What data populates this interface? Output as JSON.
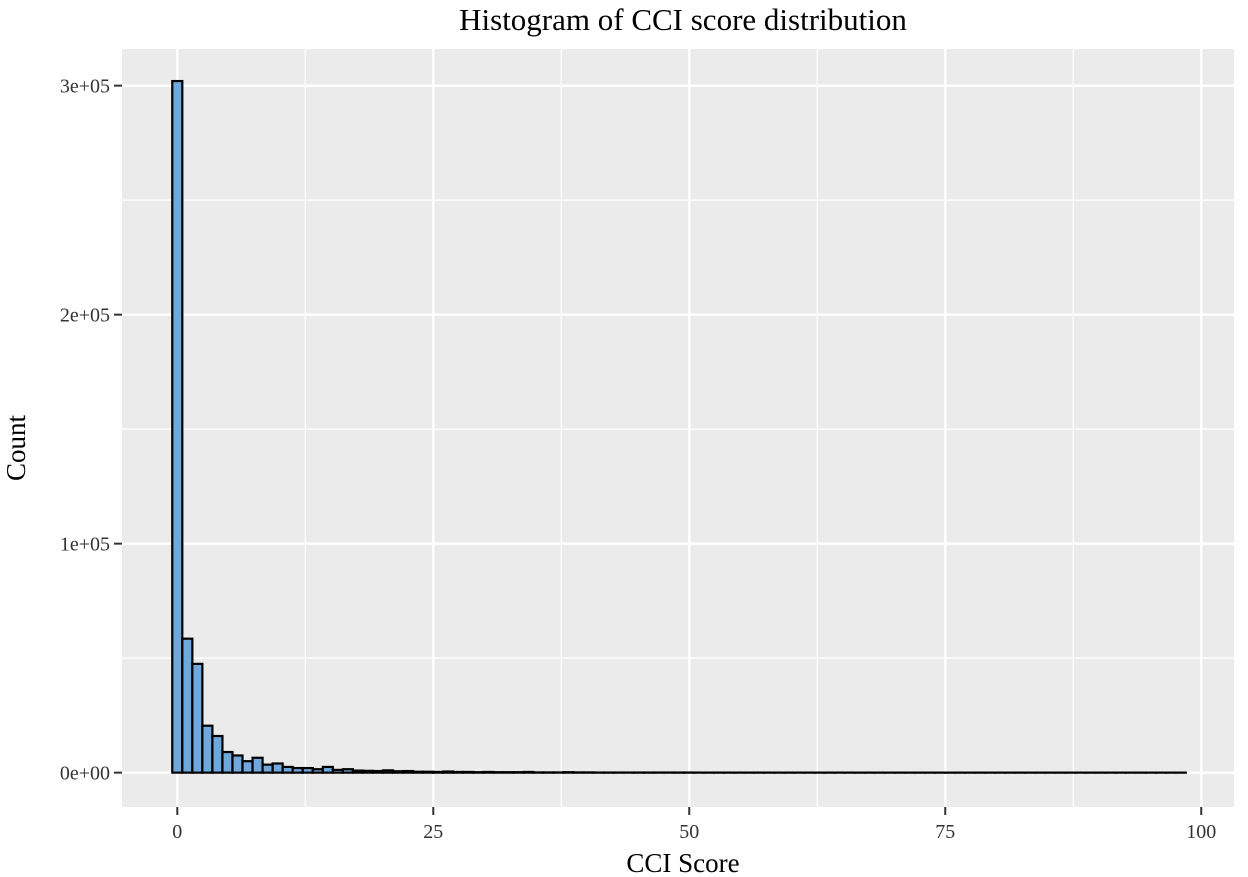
{
  "chart_data": {
    "type": "bar",
    "title": "Histogram of CCI score distribution",
    "xlabel": "CCI Score",
    "ylabel": "Count",
    "xlim": [
      -5.4,
      103.2
    ],
    "ylim": [
      -15000,
      316000
    ],
    "x_ticks": [
      {
        "value": 0,
        "label": "0"
      },
      {
        "value": 25,
        "label": "25"
      },
      {
        "value": 50,
        "label": "50"
      },
      {
        "value": 75,
        "label": "75"
      },
      {
        "value": 100,
        "label": "100"
      }
    ],
    "y_ticks": [
      {
        "value": 0,
        "label": "0e+00"
      },
      {
        "value": 100000,
        "label": "1e+05"
      },
      {
        "value": 200000,
        "label": "2e+05"
      },
      {
        "value": 300000,
        "label": "3e+05"
      }
    ],
    "grid": true,
    "bin_width": 0.98,
    "bin_start": -0.49,
    "counts": [
      302000,
      58500,
      47500,
      20500,
      16000,
      9000,
      7500,
      5000,
      6500,
      3500,
      4000,
      2500,
      2000,
      2000,
      1500,
      2500,
      1200,
      1500,
      900,
      800,
      700,
      1000,
      600,
      700,
      400,
      400,
      300,
      500,
      300,
      300,
      200,
      300,
      200,
      200,
      200,
      300,
      100,
      100,
      100,
      200,
      100,
      100,
      50,
      50,
      50,
      50,
      50,
      50,
      50,
      50,
      50,
      50,
      30,
      30,
      30,
      30,
      30,
      30,
      30,
      30,
      20,
      20,
      20,
      20,
      20,
      20,
      20,
      20,
      20,
      20,
      10,
      10,
      10,
      10,
      10,
      10,
      10,
      10,
      10,
      10,
      10,
      10,
      10,
      10,
      10,
      10,
      10,
      10,
      10,
      10,
      10,
      10,
      10,
      10,
      10,
      10,
      10,
      10,
      10,
      10,
      10
    ],
    "colors": {
      "bar_fill": "#6fa8dc",
      "bar_stroke": "#000000",
      "panel": "#ebebeb",
      "grid": "#ffffff"
    }
  }
}
